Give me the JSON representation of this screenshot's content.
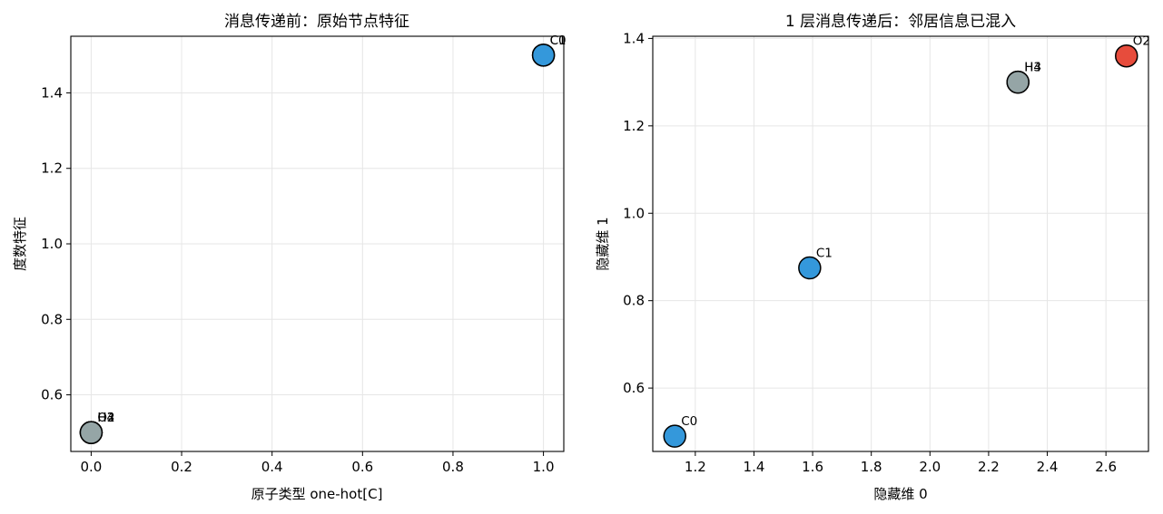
{
  "chart_data": [
    {
      "type": "scatter",
      "title": "消息传递前：原始节点特征",
      "xlabel": "原子类型 one-hot[C]",
      "ylabel": "度数特征",
      "xlim": [
        -0.045,
        1.045
      ],
      "ylim": [
        0.45,
        1.55
      ],
      "xticks": [
        0.0,
        0.2,
        0.4,
        0.6,
        0.8,
        1.0
      ],
      "xtick_labels": [
        "0.0",
        "0.2",
        "0.4",
        "0.6",
        "0.8",
        "1.0"
      ],
      "yticks": [
        0.6,
        0.8,
        1.0,
        1.2,
        1.4
      ],
      "ytick_labels": [
        "0.6",
        "0.8",
        "1.0",
        "1.2",
        "1.4"
      ],
      "grid": true,
      "points": [
        {
          "label": "O2",
          "x": 0.0,
          "y": 0.5,
          "color": "#95a5a6"
        },
        {
          "label": "H3",
          "x": 0.0,
          "y": 0.5,
          "color": "#95a5a6"
        },
        {
          "label": "H4",
          "x": 0.0,
          "y": 0.5,
          "color": "#95a5a6"
        },
        {
          "label": "C0",
          "x": 1.0,
          "y": 1.5,
          "color": "#3498db"
        },
        {
          "label": "C1",
          "x": 1.0,
          "y": 1.5,
          "color": "#3498db"
        }
      ]
    },
    {
      "type": "scatter",
      "title": "1 层消息传递后：邻居信息已混入",
      "xlabel": "隐藏维 0",
      "ylabel": "隐藏维 1",
      "xlim": [
        1.055,
        2.745
      ],
      "ylim": [
        0.455,
        1.405
      ],
      "xticks": [
        1.2,
        1.4,
        1.6,
        1.8,
        2.0,
        2.2,
        2.4,
        2.6
      ],
      "xtick_labels": [
        "1.2",
        "1.4",
        "1.6",
        "1.8",
        "2.0",
        "2.2",
        "2.4",
        "2.6"
      ],
      "yticks": [
        0.6,
        0.8,
        1.0,
        1.2,
        1.4
      ],
      "ytick_labels": [
        "0.6",
        "0.8",
        "1.0",
        "1.2",
        "1.4"
      ],
      "grid": true,
      "points": [
        {
          "label": "C0",
          "x": 1.13,
          "y": 0.49,
          "color": "#3498db"
        },
        {
          "label": "C1",
          "x": 1.59,
          "y": 0.875,
          "color": "#3498db"
        },
        {
          "label": "H3",
          "x": 2.3,
          "y": 1.3,
          "color": "#95a5a6"
        },
        {
          "label": "H4",
          "x": 2.3,
          "y": 1.3,
          "color": "#95a5a6"
        },
        {
          "label": "O2",
          "x": 2.67,
          "y": 1.36,
          "color": "#e74c3c"
        }
      ]
    }
  ]
}
